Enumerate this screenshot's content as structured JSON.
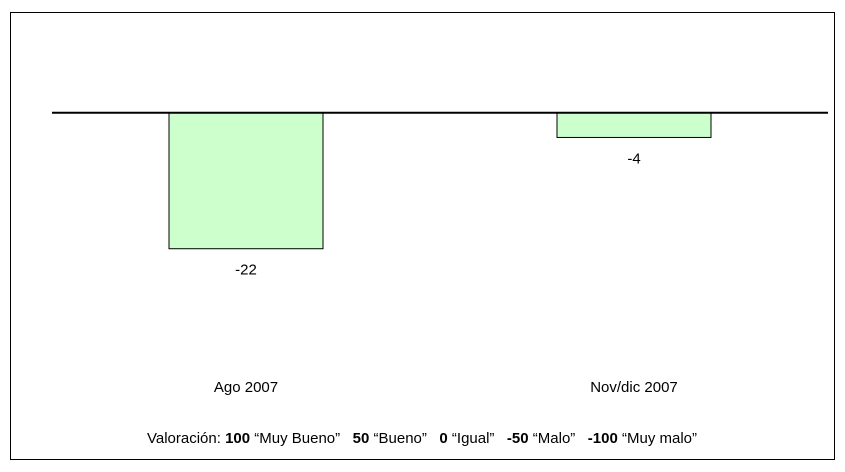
{
  "chart_data": {
    "type": "bar",
    "categories": [
      "Ago 2007",
      "Nov/dic 2007"
    ],
    "values": [
      -22,
      -4
    ],
    "color": "#ccffcc",
    "ylim": [
      -40,
      15
    ],
    "note": [
      {
        "text": "Valoración: ",
        "bold": false
      },
      {
        "text": "100",
        "bold": true
      },
      {
        "text": " “Muy Bueno”   ",
        "bold": false
      },
      {
        "text": "50",
        "bold": true
      },
      {
        "text": " “Bueno”   ",
        "bold": false
      },
      {
        "text": "0",
        "bold": true
      },
      {
        "text": " “Igual”   ",
        "bold": false
      },
      {
        "text": "-50",
        "bold": true
      },
      {
        "text": " “Malo”   ",
        "bold": false
      },
      {
        "text": "-100",
        "bold": true
      },
      {
        "text": " “Muy malo”",
        "bold": false
      }
    ]
  }
}
